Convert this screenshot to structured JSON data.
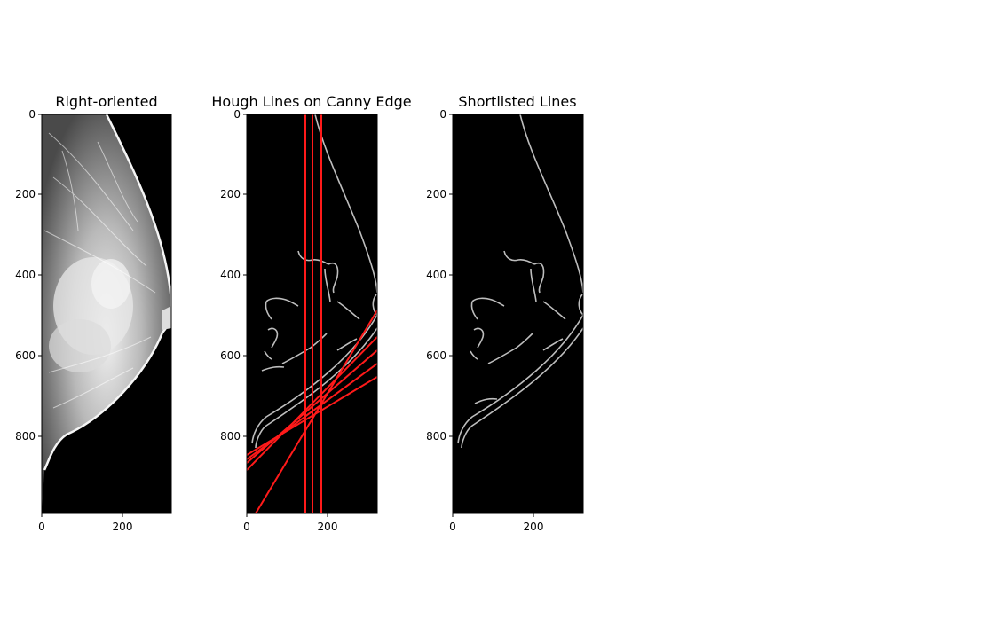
{
  "figure": {
    "panels": [
      {
        "title": "Right-oriented",
        "image": "mammogram-grayscale",
        "xticks": [
          "0",
          "200"
        ],
        "yticks": [
          "0",
          "200",
          "400",
          "600",
          "800"
        ]
      },
      {
        "title": "Hough Lines on Canny Edge",
        "image": "canny-edges-with-red-hough-lines",
        "line_color": "#ff1a1a",
        "xticks": [
          "0",
          "200"
        ],
        "yticks": [
          "0",
          "200",
          "400",
          "600",
          "800"
        ]
      },
      {
        "title": "Shortlisted Lines",
        "image": "canny-edges-shortlisted",
        "xticks": [
          "0",
          "200"
        ],
        "yticks": [
          "0",
          "200",
          "400",
          "600",
          "800"
        ]
      }
    ]
  }
}
